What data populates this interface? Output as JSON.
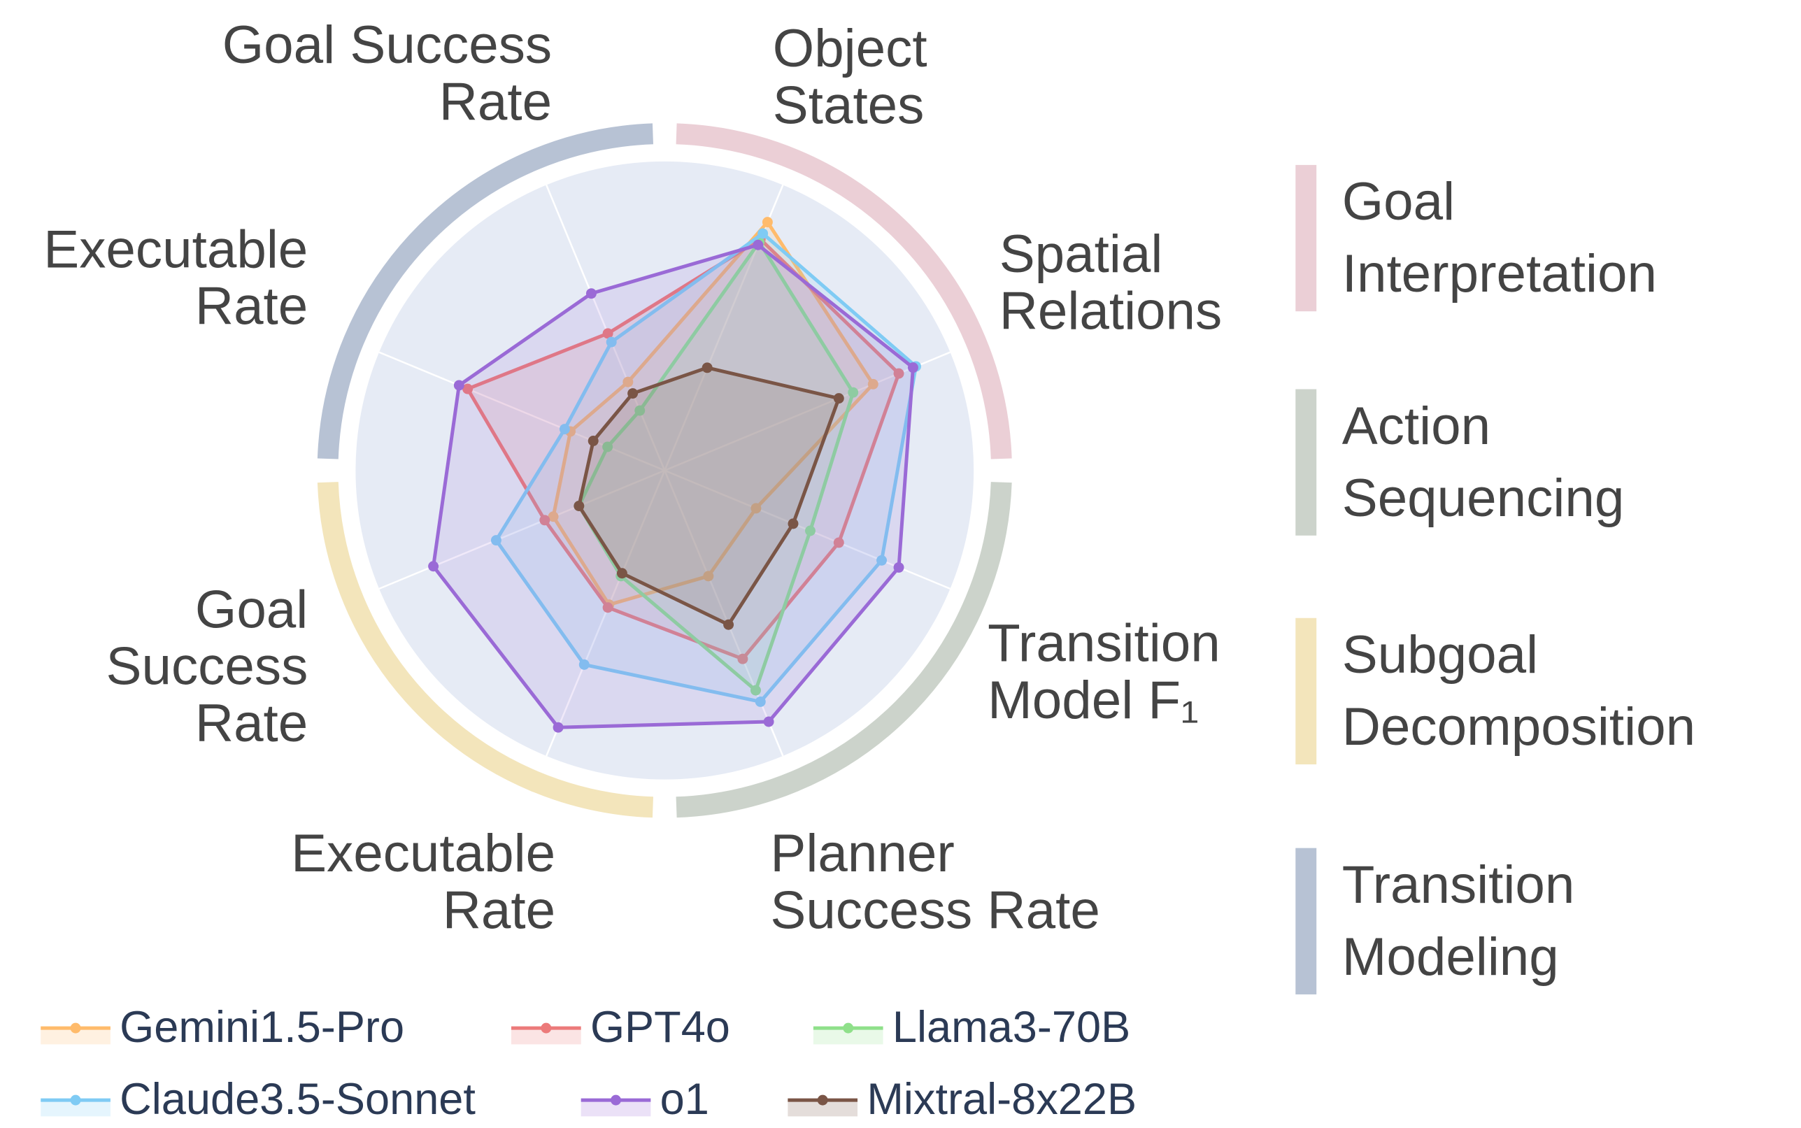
{
  "chart_data": {
    "type": "radar",
    "axes": [
      [
        "Object",
        "States"
      ],
      [
        "Spatial",
        "Relations"
      ],
      [
        "Transition",
        "Model F₁"
      ],
      [
        "Planner",
        "Success Rate"
      ],
      [
        "Executable",
        "Rate"
      ],
      [
        "Goal",
        "Success",
        "Rate"
      ],
      [
        "Executable",
        "Rate"
      ],
      [
        "Goal Success",
        "Rate"
      ]
    ],
    "rlim": [
      0,
      100
    ],
    "groups": [
      {
        "name": [
          "Goal",
          "Interpretation"
        ],
        "color": "#ebcfd6"
      },
      {
        "name": [
          "Action",
          "Sequencing"
        ],
        "color": "#ccd3cb"
      },
      {
        "name": [
          "Subgoal",
          "Decomposition"
        ],
        "color": "#f3e5bb"
      },
      {
        "name": [
          "Transition",
          "Modeling"
        ],
        "color": "#b7c2d4"
      }
    ],
    "series": [
      {
        "name": "Gemini1.5-Pro",
        "color": "#ffbb6b",
        "values": [
          87,
          73,
          32,
          37,
          47,
          39,
          33,
          31
        ]
      },
      {
        "name": "GPT4o",
        "color": "#ec7a7a",
        "values": [
          81,
          82,
          61,
          66,
          48,
          42,
          69,
          48
        ]
      },
      {
        "name": "Llama3-70B",
        "color": "#8fe08a",
        "values": [
          80,
          66,
          51,
          77,
          37,
          30,
          20,
          21
        ]
      },
      {
        "name": "Claude3.5-Sonnet",
        "color": "#7fcbf4",
        "values": [
          83,
          88,
          76,
          81,
          68,
          59,
          35,
          45
        ]
      },
      {
        "name": "o1",
        "color": "#9a6ad6",
        "values": [
          79,
          87,
          82,
          88,
          90,
          81,
          72,
          62
        ]
      },
      {
        "name": "Mixtral-8x22B",
        "color": "#7a5546",
        "values": [
          36,
          61,
          45,
          54,
          36,
          30,
          25,
          27
        ]
      }
    ]
  }
}
